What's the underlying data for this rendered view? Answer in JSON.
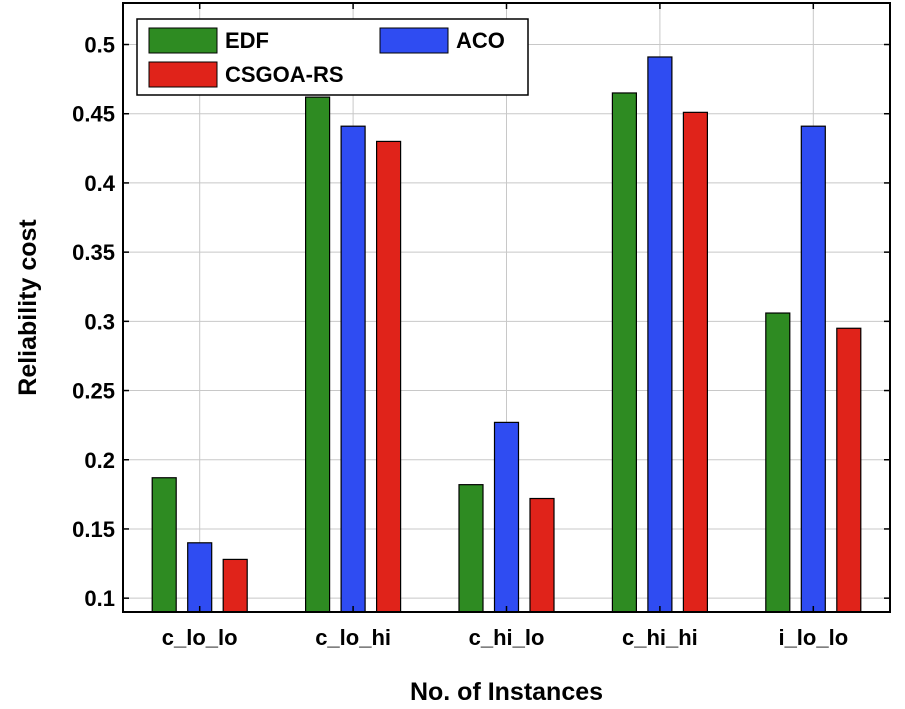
{
  "chart_data": {
    "type": "bar",
    "title": "",
    "xlabel": "No. of Instances",
    "ylabel": "Reliability cost",
    "ylim": [
      0.09,
      0.53
    ],
    "yticks": [
      "0.1",
      "0.15",
      "0.2",
      "0.25",
      "0.3",
      "0.35",
      "0.4",
      "0.45",
      "0.5"
    ],
    "grid": true,
    "legend_position": "top-left",
    "categories": [
      "c_lo_lo",
      "c_lo_hi",
      "c_hi_lo",
      "c_hi_hi",
      "i_lo_lo"
    ],
    "series": [
      {
        "name": "EDF",
        "color": "#2e8b22",
        "values": [
          0.187,
          0.462,
          0.182,
          0.465,
          0.306
        ]
      },
      {
        "name": "ACO",
        "color": "#2f4cf2",
        "values": [
          0.14,
          0.441,
          0.227,
          0.491,
          0.441
        ]
      },
      {
        "name": "CSGOA-RS",
        "color": "#e0231a",
        "values": [
          0.128,
          0.43,
          0.172,
          0.451,
          0.295
        ]
      }
    ]
  }
}
